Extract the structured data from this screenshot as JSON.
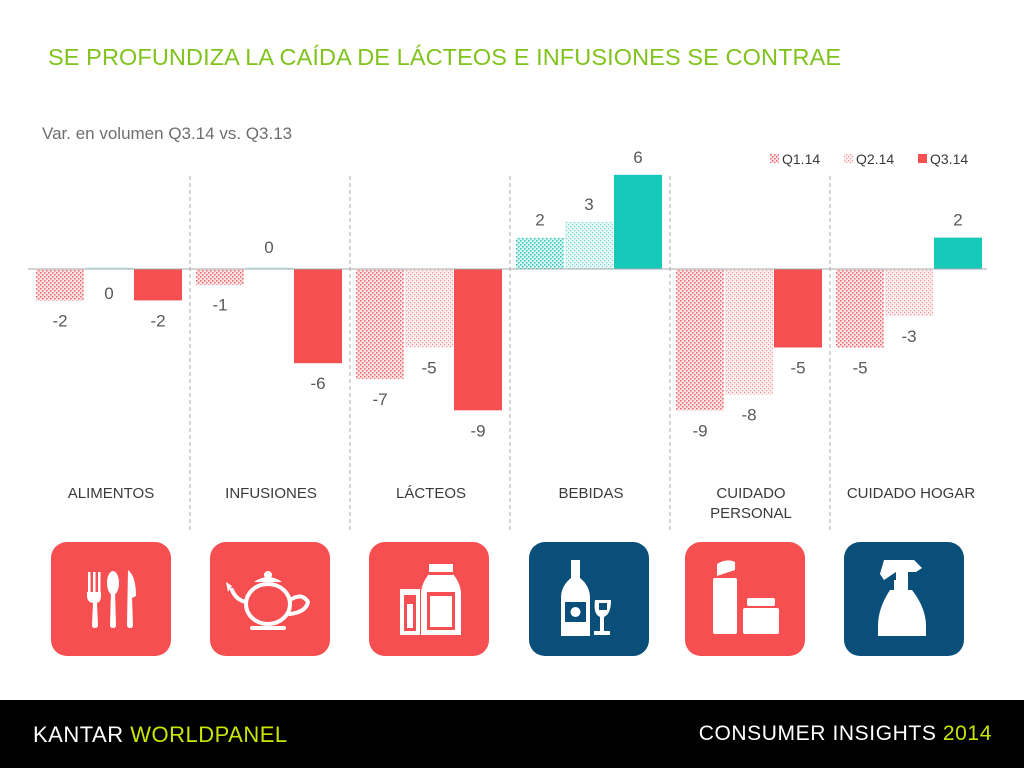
{
  "title": "SE PROFUNDIZA LA CAÍDA DE LÁCTEOS E INFUSIONES SE CONTRAE",
  "subtitle": "Var. en volumen Q3.14 vs. Q3.13",
  "colors": {
    "negative": "#f64f51",
    "positive": "#17c9b8",
    "title": "#7fc31c",
    "tile_red": "#f64f51",
    "tile_blue": "#0a4f7a"
  },
  "chart_data": {
    "type": "bar",
    "title": "",
    "xlabel": "",
    "ylabel": "Var. en volumen Q3.14 vs. Q3.13",
    "ylim": [
      -10,
      7
    ],
    "categories": [
      "ALIMENTOS",
      "INFUSIONES",
      "LÁCTEOS",
      "BEBIDAS",
      "CUIDADO PERSONAL",
      "CUIDADO HOGAR"
    ],
    "category_lines": [
      [
        "ALIMENTOS"
      ],
      [
        "INFUSIONES"
      ],
      [
        "LÁCTEOS"
      ],
      [
        "BEBIDAS"
      ],
      [
        "CUIDADO",
        "PERSONAL"
      ],
      [
        "CUIDADO HOGAR"
      ]
    ],
    "series": [
      {
        "name": "Q1.14",
        "pattern": "dotted",
        "values": [
          -2,
          -1,
          -7,
          2,
          -9,
          -5
        ]
      },
      {
        "name": "Q2.14",
        "pattern": "fine-dotted",
        "values": [
          0,
          0,
          -5,
          3,
          -8,
          -3
        ]
      },
      {
        "name": "Q3.14",
        "pattern": "solid",
        "values": [
          -2,
          -6,
          -9,
          6,
          -5,
          2
        ]
      }
    ],
    "labels": [
      [
        "-2",
        "0",
        "-2"
      ],
      [
        "-1",
        "0",
        "-6"
      ],
      [
        "-7",
        "-5",
        "-9"
      ],
      [
        "2",
        "3",
        "6"
      ],
      [
        "-9",
        "-8",
        "-5"
      ],
      [
        "-5",
        "-3",
        "2"
      ]
    ],
    "legend": [
      "Q1.14",
      "Q2.14",
      "Q3.14"
    ],
    "legend_position": "top-right",
    "grid": false
  },
  "icons": [
    {
      "name": "cutlery-icon",
      "category": "ALIMENTOS",
      "tile": "red"
    },
    {
      "name": "teapot-icon",
      "category": "INFUSIONES",
      "tile": "red"
    },
    {
      "name": "milk-glass-bottle-icon",
      "category": "LÁCTEOS",
      "tile": "red"
    },
    {
      "name": "wine-bottle-glass-icon",
      "category": "BEBIDAS",
      "tile": "blue"
    },
    {
      "name": "personal-care-containers-icon",
      "category": "CUIDADO PERSONAL",
      "tile": "red"
    },
    {
      "name": "spray-bottle-icon",
      "category": "CUIDADO HOGAR",
      "tile": "blue"
    }
  ],
  "footer": {
    "brand_part1": "KANTAR ",
    "brand_part2": "WORLDPANEL",
    "report_label": "CONSUMER INSIGHTS ",
    "report_year": "2014"
  }
}
